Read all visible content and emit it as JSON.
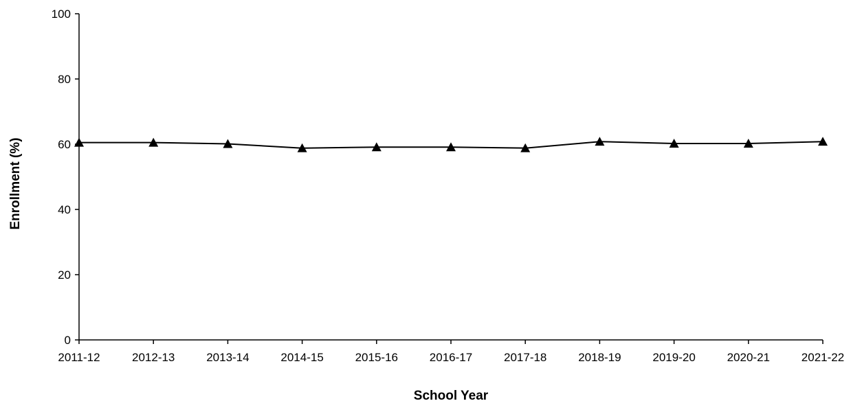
{
  "chart_data": {
    "type": "line",
    "title": "",
    "xlabel": "School Year",
    "ylabel": "Enrollment (%)",
    "ylim": [
      0,
      100
    ],
    "yticks": [
      0,
      20,
      40,
      60,
      80,
      100
    ],
    "grid": false,
    "legend": "none",
    "categories": [
      "2011-12",
      "2012-13",
      "2013-14",
      "2014-15",
      "2015-16",
      "2016-17",
      "2017-18",
      "2018-19",
      "2019-20",
      "2020-21",
      "2021-22"
    ],
    "series": [
      {
        "marker": "triangle",
        "color": "#000000",
        "values": [
          60.5,
          60.5,
          60.1,
          58.8,
          59.1,
          59.1,
          58.8,
          60.8,
          60.2,
          60.2,
          60.8
        ]
      }
    ]
  }
}
